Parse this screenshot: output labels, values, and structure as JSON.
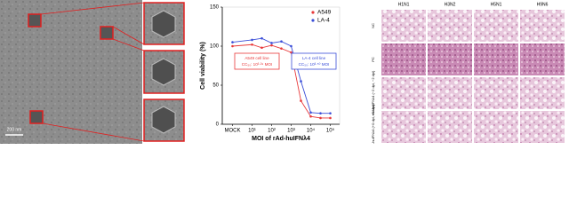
{
  "tem": {
    "scale_bar": "200 nm"
  },
  "chart_data": {
    "type": "scatter",
    "x_label": "MOI of rAd-huIFNλ4",
    "y_label": "Cell viability (%)",
    "xlog": true,
    "xlim": [
      0.3,
      300000
    ],
    "xticks": [
      {
        "value": 1,
        "label": "MOCK"
      },
      {
        "value": 10,
        "label": "10¹"
      },
      {
        "value": 100,
        "label": "10²"
      },
      {
        "value": 1000,
        "label": "10³"
      },
      {
        "value": 10000,
        "label": "10⁴"
      },
      {
        "value": 100000,
        "label": "10⁵"
      }
    ],
    "ylim": [
      0,
      150
    ],
    "yticks": [
      0,
      50,
      100,
      150
    ],
    "x": [
      1,
      10,
      31.6,
      100,
      316,
      1000,
      3162,
      10000,
      31623,
      100000
    ],
    "series": [
      {
        "name": "A549",
        "color": "#e8393a",
        "values": [
          100,
          102,
          98,
          101,
          97,
          92,
          30,
          10,
          8,
          8
        ]
      },
      {
        "name": "LA-4",
        "color": "#3b4fd8",
        "values": [
          105,
          108,
          110,
          104,
          106,
          100,
          55,
          15,
          14,
          14
        ]
      }
    ],
    "legend": "upper right",
    "annotations": [
      {
        "text": "A549 cell line",
        "sub": "CC₅₀: 10³·²⁹ MOI",
        "color": "#e8393a"
      },
      {
        "text": "LA-4 cell line",
        "sub": "CC₅₀: 10³·⁵⁰ MOI",
        "color": "#3b4fd8"
      }
    ]
  },
  "histology": {
    "columns": [
      "H1N1",
      "H3N2",
      "H5N1",
      "H9N6"
    ],
    "rows": [
      "NC",
      "PC",
      "rAd-huIFNλ4 (−2 dpi, −2 dpi)",
      "rAd-huIFNλ4 (+0 dpi, +4 dpi)"
    ]
  }
}
